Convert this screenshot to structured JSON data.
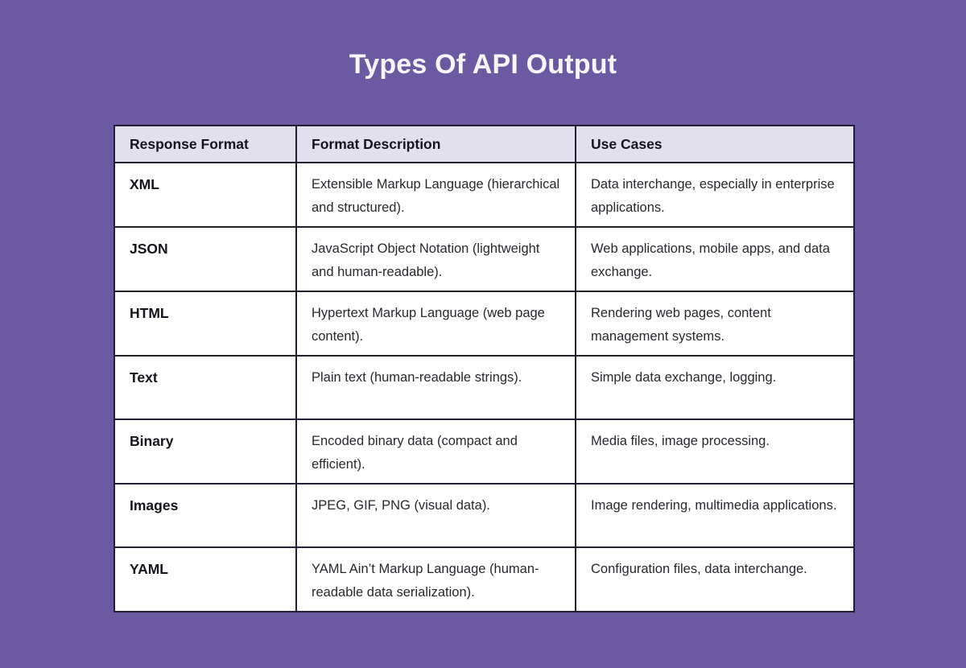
{
  "page": {
    "title": "Types Of API Output",
    "background_color": "#6B59A1"
  },
  "table": {
    "headers": [
      "Response Format",
      "Format Description",
      "Use Cases"
    ],
    "rows": [
      {
        "format": "XML",
        "description": "Extensible Markup Language (hierarchical and structured).",
        "use_cases": "Data interchange, especially in enterprise applications."
      },
      {
        "format": "JSON",
        "description": "JavaScript Object Notation (lightweight and human-readable).",
        "use_cases": "Web applications, mobile apps, and data exchange."
      },
      {
        "format": "HTML",
        "description": "Hypertext Markup Language (web page content).",
        "use_cases": "Rendering web pages, content management systems."
      },
      {
        "format": "Text",
        "description": "Plain text (human-readable strings).",
        "use_cases": "Simple data exchange, logging."
      },
      {
        "format": "Binary",
        "description": "Encoded binary data (compact and efficient).",
        "use_cases": "Media files, image processing."
      },
      {
        "format": "Images",
        "description": "JPEG, GIF, PNG (visual data).",
        "use_cases": "Image rendering, multimedia applications."
      },
      {
        "format": "YAML",
        "description": "YAML Ain’t Markup Language (human-readable data serialization).",
        "use_cases": "Configuration files, data interchange."
      }
    ],
    "colors": {
      "header_bg": "#E3E0EE",
      "row_bg": "#FFFFFF",
      "border": "#221E35",
      "header_text": "#15141C",
      "body_text": "#28282E",
      "title_text": "#F8F5FB"
    }
  }
}
